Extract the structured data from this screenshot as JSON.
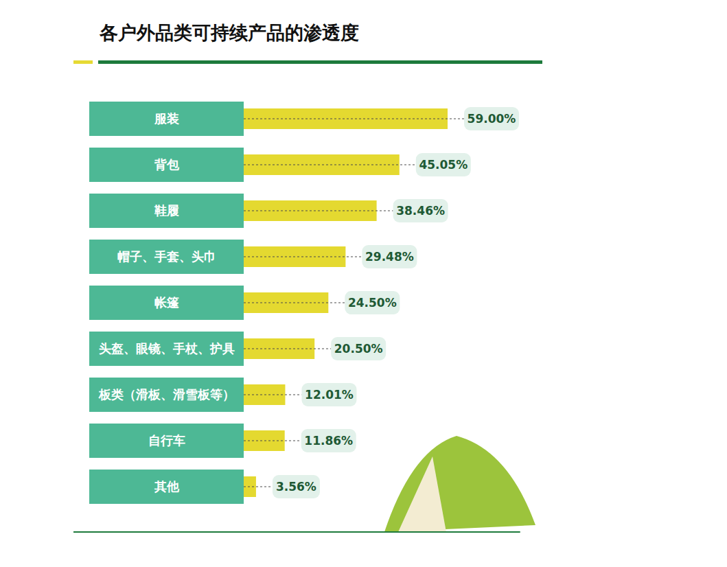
{
  "chart_data": {
    "type": "bar",
    "title": "各户外品类可持续产品的渗透度",
    "orientation": "horizontal",
    "categories": [
      "服装",
      "背包",
      "鞋履",
      "帽子、手套、头巾",
      "帐篷",
      "头盔、眼镜、手杖、护具",
      "板类（滑板、滑雪板等）",
      "自行车",
      "其他"
    ],
    "values": [
      59.0,
      45.05,
      38.46,
      29.48,
      24.5,
      20.5,
      12.01,
      11.86,
      3.56
    ],
    "value_labels": [
      "59.00%",
      "45.05%",
      "38.46%",
      "29.48%",
      "24.50%",
      "20.50%",
      "12.01%",
      "11.86%",
      "3.56%"
    ],
    "color": "#e4d930",
    "xlim": [
      0,
      80
    ],
    "tick_labels": "y",
    "data_labels": true
  }
}
